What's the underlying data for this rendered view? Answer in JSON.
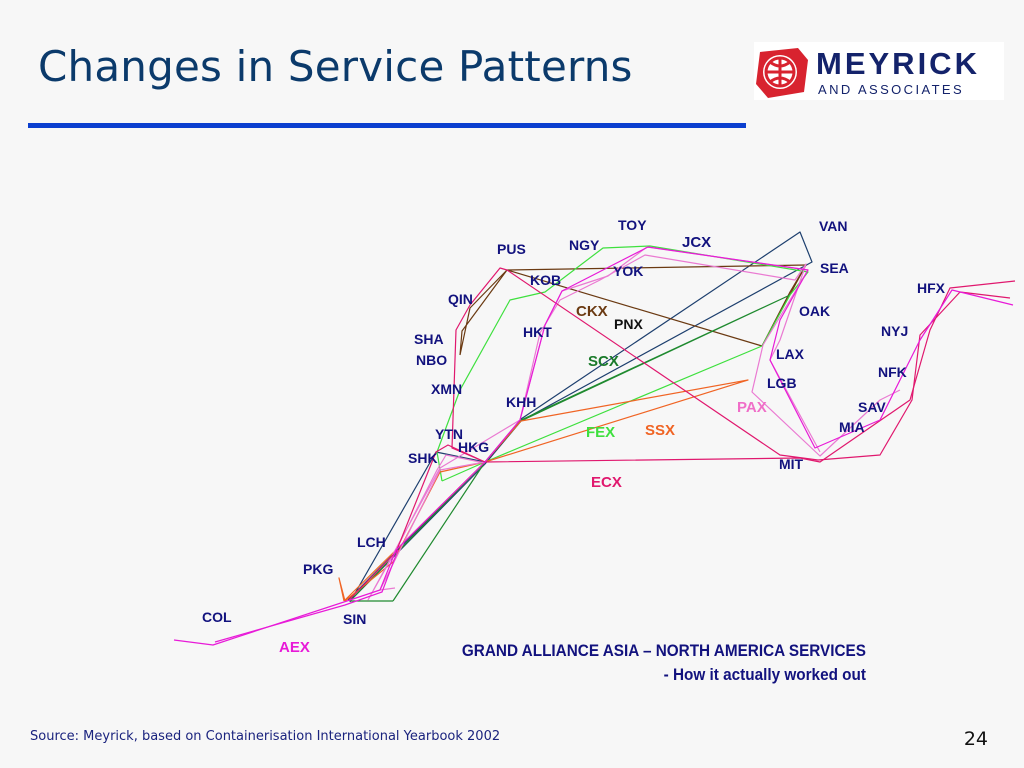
{
  "slide": {
    "title": "Changes in Service Patterns",
    "page_number": "24",
    "source": "Source: Meyrick, based on Containerisation International Yearbook 2002"
  },
  "logo": {
    "name": "MEYRICK",
    "subtitle": "AND ASSOCIATES",
    "icon": "globe-shield-icon",
    "brand_red": "#d8232f",
    "brand_navy": "#14236b"
  },
  "caption": {
    "line1": "GRAND ALLIANCE ASIA – NORTH AMERICA SERVICES",
    "line2": "- How it actually worked out"
  },
  "ports": [
    {
      "code": "TOY",
      "region": "asia"
    },
    {
      "code": "NGY",
      "region": "asia"
    },
    {
      "code": "PUS",
      "region": "asia"
    },
    {
      "code": "YOK",
      "region": "asia"
    },
    {
      "code": "KOB",
      "region": "asia"
    },
    {
      "code": "QIN",
      "region": "asia"
    },
    {
      "code": "SHA",
      "region": "asia"
    },
    {
      "code": "NBO",
      "region": "asia"
    },
    {
      "code": "HKT",
      "region": "asia"
    },
    {
      "code": "XMN",
      "region": "asia"
    },
    {
      "code": "KHH",
      "region": "asia"
    },
    {
      "code": "YTN",
      "region": "asia"
    },
    {
      "code": "HKG",
      "region": "asia"
    },
    {
      "code": "SHK",
      "region": "asia"
    },
    {
      "code": "LCH",
      "region": "asia"
    },
    {
      "code": "PKG",
      "region": "asia"
    },
    {
      "code": "COL",
      "region": "asia"
    },
    {
      "code": "SIN",
      "region": "asia"
    },
    {
      "code": "VAN",
      "region": "north-america"
    },
    {
      "code": "SEA",
      "region": "north-america"
    },
    {
      "code": "OAK",
      "region": "north-america"
    },
    {
      "code": "LAX",
      "region": "north-america"
    },
    {
      "code": "LGB",
      "region": "north-america"
    },
    {
      "code": "MIT",
      "region": "north-america"
    },
    {
      "code": "MIA",
      "region": "north-america"
    },
    {
      "code": "SAV",
      "region": "north-america"
    },
    {
      "code": "NFK",
      "region": "north-america"
    },
    {
      "code": "NYJ",
      "region": "north-america"
    },
    {
      "code": "HFX",
      "region": "north-america"
    },
    {
      "code": "PNX",
      "region": "north-america"
    }
  ],
  "services": [
    {
      "code": "JCX",
      "color": "#12127e"
    },
    {
      "code": "CKX",
      "color": "#6b3a12"
    },
    {
      "code": "SCX",
      "color": "#1a7a2a"
    },
    {
      "code": "PAX",
      "color": "#f06ec8"
    },
    {
      "code": "FEX",
      "color": "#3ee03e"
    },
    {
      "code": "SSX",
      "color": "#f06424"
    },
    {
      "code": "ECX",
      "color": "#e0186e"
    },
    {
      "code": "AEX",
      "color": "#e81ad8"
    }
  ],
  "route_colors": {
    "jcx": "#1d3f6e",
    "ckx": "#6b3a12",
    "scx": "#1f8a2f",
    "pax": "#ea7ad2",
    "fex": "#3ee03e",
    "ssx": "#f06424",
    "ecx": "#e0186e",
    "aex": "#e81ad8"
  }
}
